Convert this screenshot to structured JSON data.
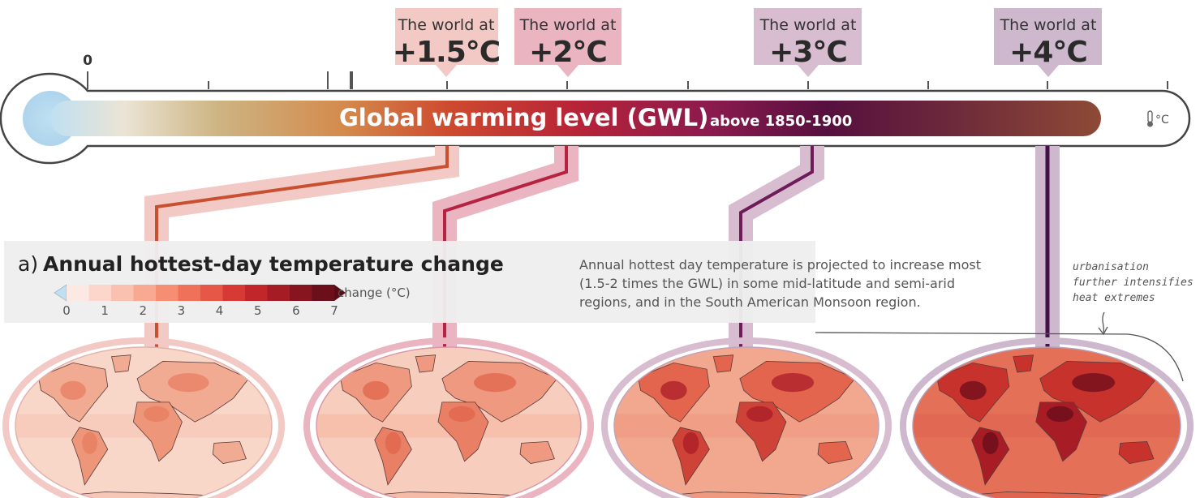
{
  "scale": {
    "zero_label": "0",
    "bar_title": "Global warming level (GWL)",
    "bar_subtitle": "above 1850-1900",
    "unit_label": "°C"
  },
  "levels": [
    {
      "line1": "The world at",
      "line2": "+1.5°C",
      "color": "#f2c9c4",
      "line_color": "#c9502f"
    },
    {
      "line1": "The world at",
      "line2": "+2°C",
      "color": "#eab4c1",
      "line_color": "#b52341"
    },
    {
      "line1": "The world at",
      "line2": "+3°C",
      "color": "#d8bdd0",
      "line_color": "#6e1b5a"
    },
    {
      "line1": "The world at",
      "line2": "+4°C",
      "color": "#cdb8ce",
      "line_color": "#431146"
    }
  ],
  "panel": {
    "prefix": "a)",
    "title": "Annual hottest-day temperature change",
    "description": [
      "Annual hottest day temperature is projected to increase most",
      "(1.5-2 times the GWL) in some mid-latitude and semi-arid",
      "regions, and in the South American Monsoon region."
    ],
    "note": [
      "urbanisation",
      "further intensifies",
      "heat extremes"
    ]
  },
  "legend": {
    "label": "change (°C)",
    "ticks": [
      "0",
      "1",
      "2",
      "3",
      "4",
      "5",
      "6",
      "7"
    ],
    "colors": [
      "#fde9e3",
      "#fcd6cb",
      "#fbc1b0",
      "#f9a891",
      "#f68e74",
      "#f0715a",
      "#e65747",
      "#d73a34",
      "#c0262a",
      "#a41c24",
      "#86151f",
      "#6b0f1a"
    ]
  }
}
